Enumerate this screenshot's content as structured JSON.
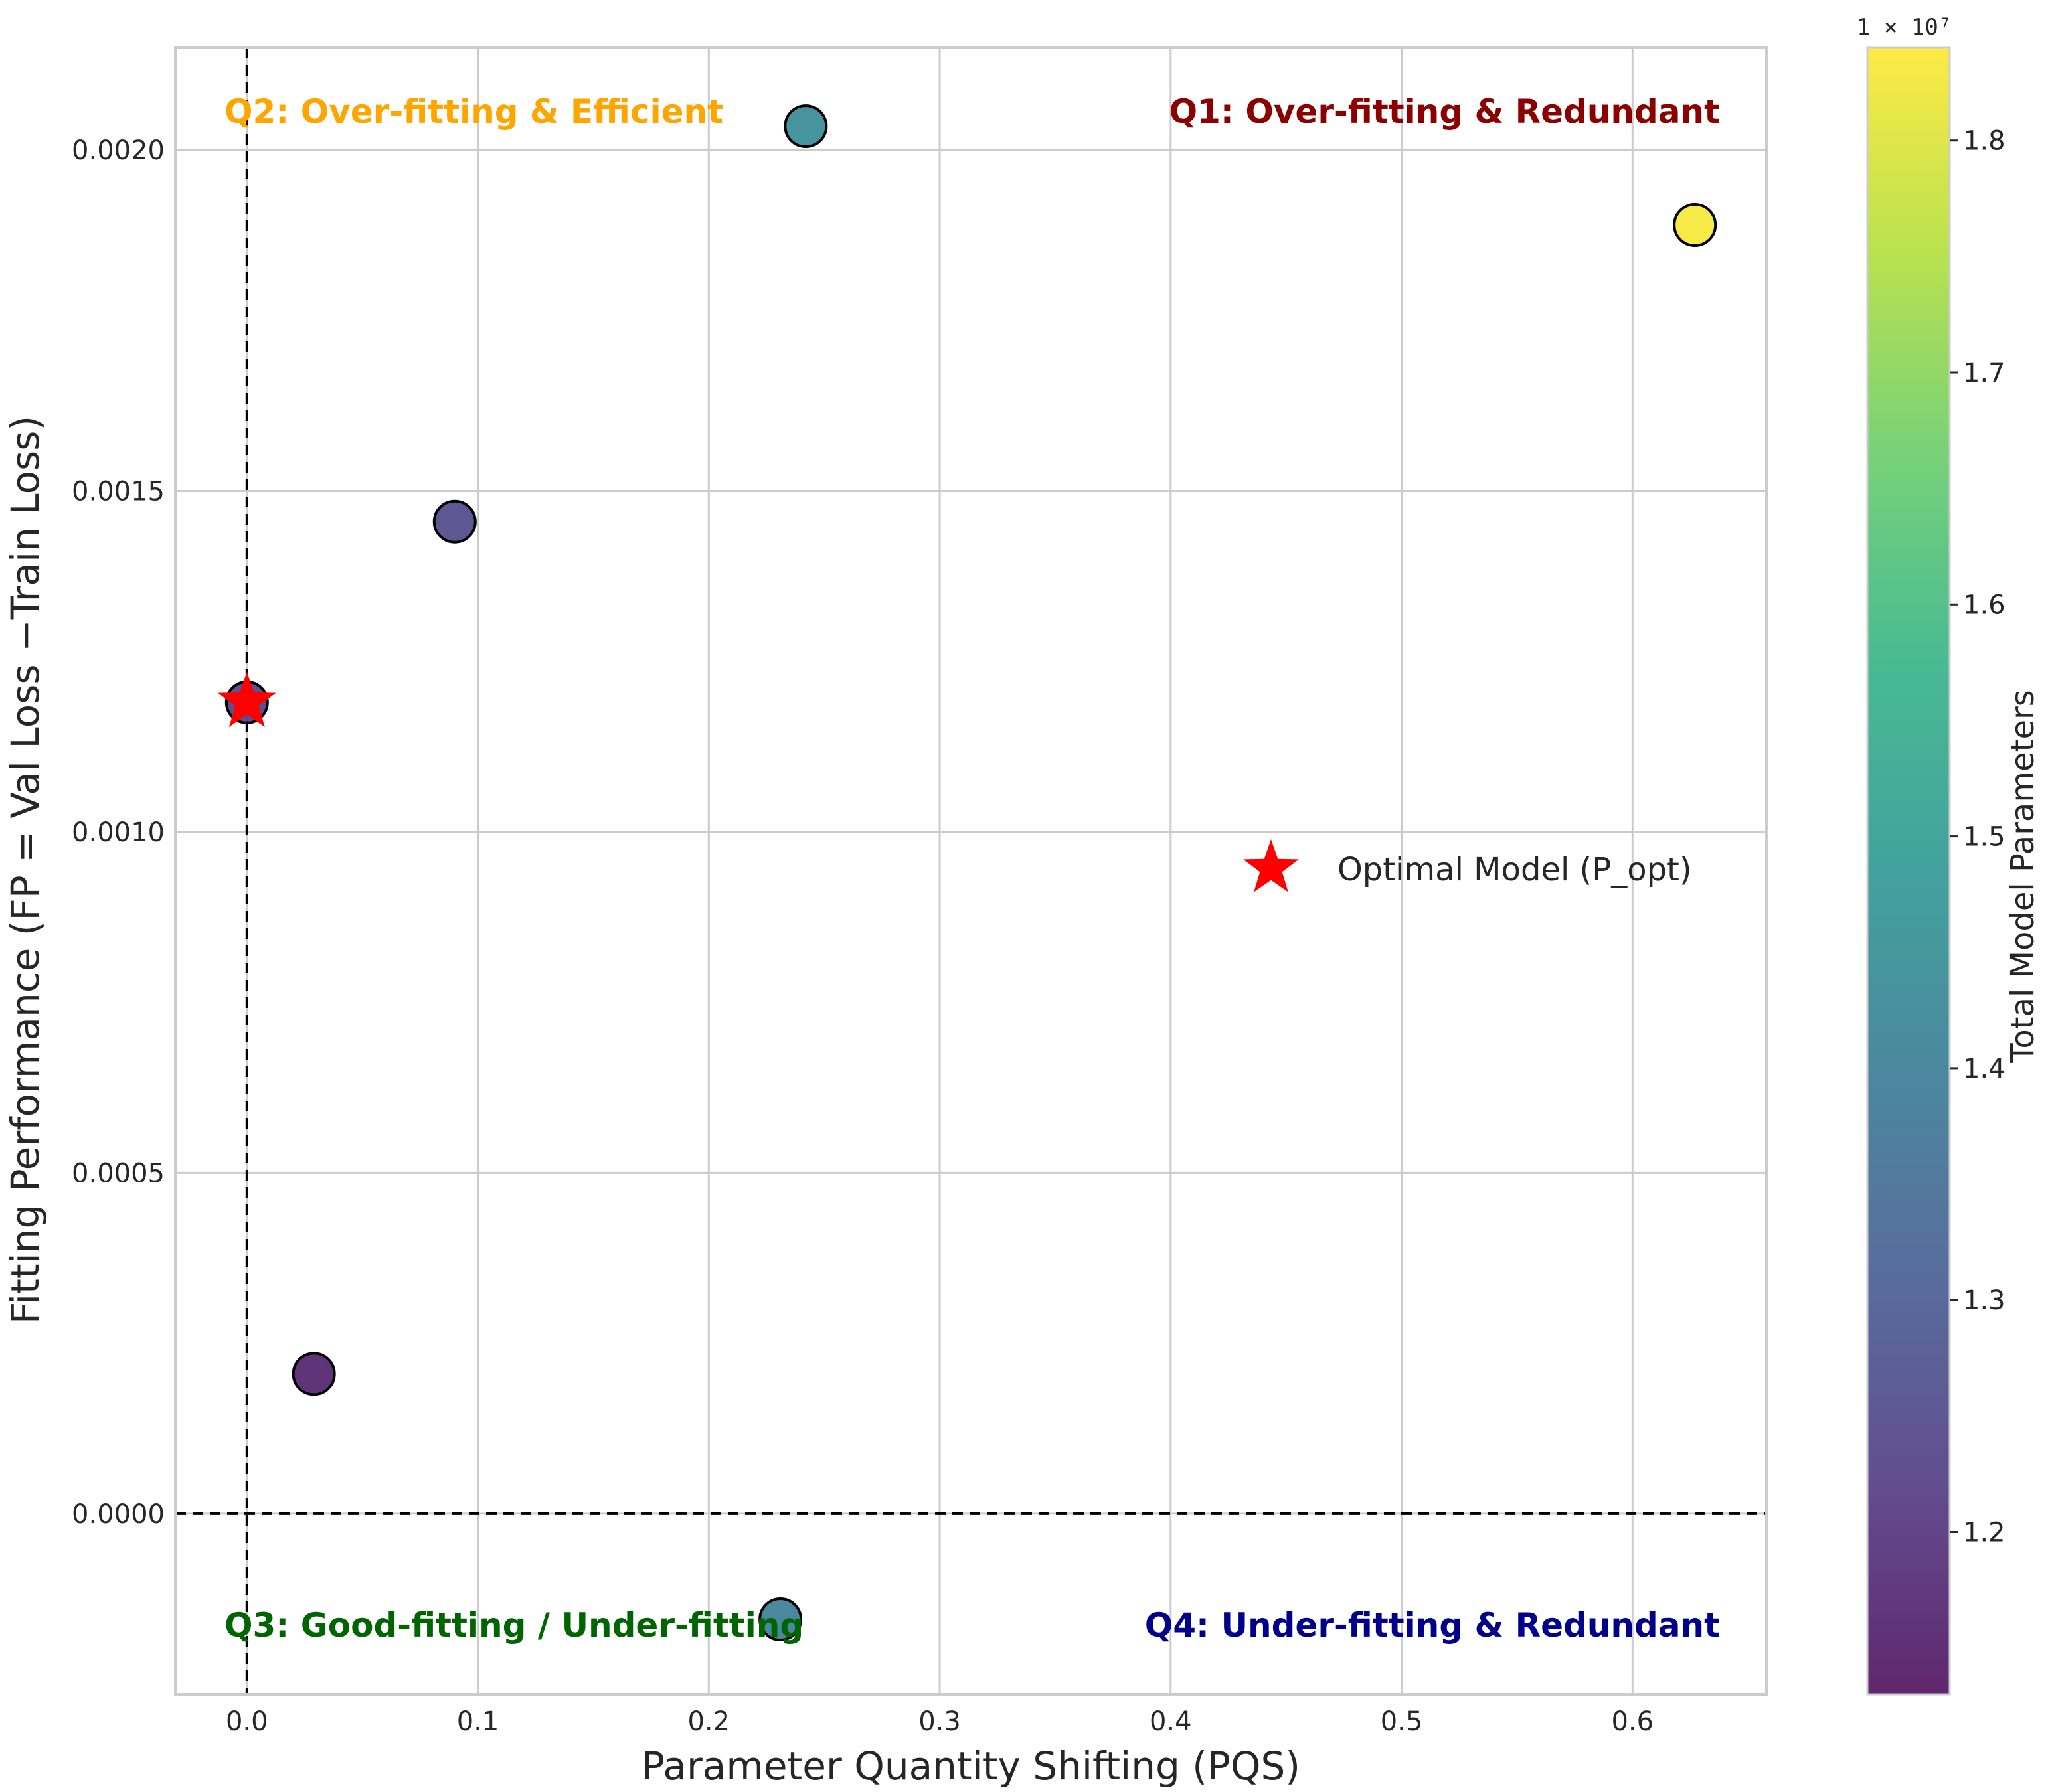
{
  "chart_data": {
    "type": "scatter",
    "xlabel": "Parameter Quantity Shifting (PQS)",
    "ylabel": "Fitting Performance (FP = Val Loss −Train Loss)",
    "xlim": [
      -0.031,
      0.658
    ],
    "ylim": [
      -0.000265,
      0.00215
    ],
    "x_ticks": [
      0.0,
      0.1,
      0.2,
      0.3,
      0.4,
      0.5,
      0.6
    ],
    "x_tick_labels": [
      "0.0",
      "0.1",
      "0.2",
      "0.3",
      "0.4",
      "0.5",
      "0.6"
    ],
    "y_ticks": [
      0.0,
      0.0005,
      0.001,
      0.0015,
      0.002
    ],
    "y_tick_labels": [
      "0.0000",
      "0.0005",
      "0.0010",
      "0.0015",
      "0.0020"
    ],
    "grid": true,
    "reference_lines": {
      "x": 0.0,
      "y": 0.0,
      "style": "dashed"
    },
    "points": [
      {
        "x": 0.0,
        "y": 0.00119,
        "params": 12200000
      },
      {
        "x": 0.029,
        "y": 0.000205,
        "params": 11600000
      },
      {
        "x": 0.09,
        "y": 0.001455,
        "params": 12500000
      },
      {
        "x": 0.231,
        "y": -0.000155,
        "params": 14000000
      },
      {
        "x": 0.242,
        "y": 0.002035,
        "params": 14400000
      },
      {
        "x": 0.627,
        "y": 0.00189,
        "params": 18300000
      }
    ],
    "optimal_point": {
      "x": 0.0,
      "y": 0.00119
    },
    "legend": {
      "label": "Optimal Model (P_opt)",
      "placement": "center-right"
    },
    "quadrant_labels": [
      {
        "text": "Q1: Over-fitting & Redundant",
        "color": "#8b0000",
        "position": "top-right"
      },
      {
        "text": "Q2: Over-fitting & Efficient",
        "color": "#ffa500",
        "position": "top-left"
      },
      {
        "text": "Q3: Good-fitting / Under-fitting",
        "color": "#006400",
        "position": "bottom-left"
      },
      {
        "text": "Q4: Under-fitting & Redundant",
        "color": "#00008b",
        "position": "bottom-right"
      }
    ],
    "colorbar": {
      "label": "Total Model Parameters",
      "range": [
        11300000,
        18400000
      ],
      "ticks": [
        1.2,
        1.3,
        1.4,
        1.5,
        1.6,
        1.7,
        1.8
      ],
      "tick_labels": [
        "1.2",
        "1.3",
        "1.4",
        "1.5",
        "1.6",
        "1.7",
        "1.8"
      ],
      "offset_text": "1 × 10⁷",
      "colormap": "viridis",
      "alpha": 0.85
    }
  }
}
